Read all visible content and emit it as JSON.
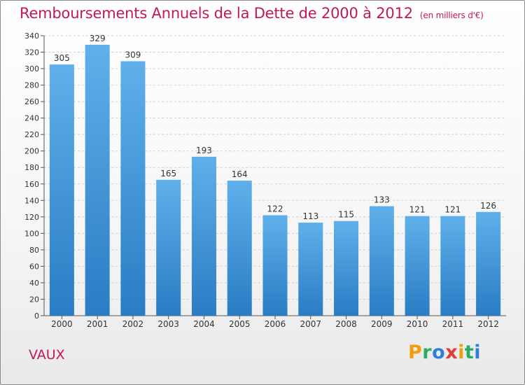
{
  "chart_data": {
    "type": "bar",
    "title": "Remboursements Annuels de la Dette de 2000 à 2012",
    "subtitle": "(en milliers d'€)",
    "categories": [
      "2000",
      "2001",
      "2002",
      "2003",
      "2004",
      "2005",
      "2006",
      "2007",
      "2008",
      "2009",
      "2010",
      "2011",
      "2012"
    ],
    "values": [
      305,
      329,
      309,
      165,
      193,
      164,
      122,
      113,
      115,
      133,
      121,
      121,
      126
    ],
    "ylim": [
      0,
      340
    ],
    "yticks": [
      0,
      20,
      40,
      60,
      80,
      100,
      120,
      140,
      160,
      180,
      200,
      220,
      240,
      260,
      280,
      300,
      320,
      340
    ],
    "grid": true,
    "bar_color": "#3a8fd6"
  },
  "commune": "VAUX",
  "logo": {
    "text": "Proxiti",
    "letters": [
      {
        "ch": "P",
        "color": "#f39c12"
      },
      {
        "ch": "r",
        "color": "#27ae60"
      },
      {
        "ch": "o",
        "color": "#2f7fd8"
      },
      {
        "ch": "x",
        "color": "#e53935"
      },
      {
        "ch": "i",
        "color": "#f39c12"
      },
      {
        "ch": "t",
        "color": "#27ae60"
      },
      {
        "ch": "i",
        "color": "#2f7fd8"
      }
    ]
  }
}
